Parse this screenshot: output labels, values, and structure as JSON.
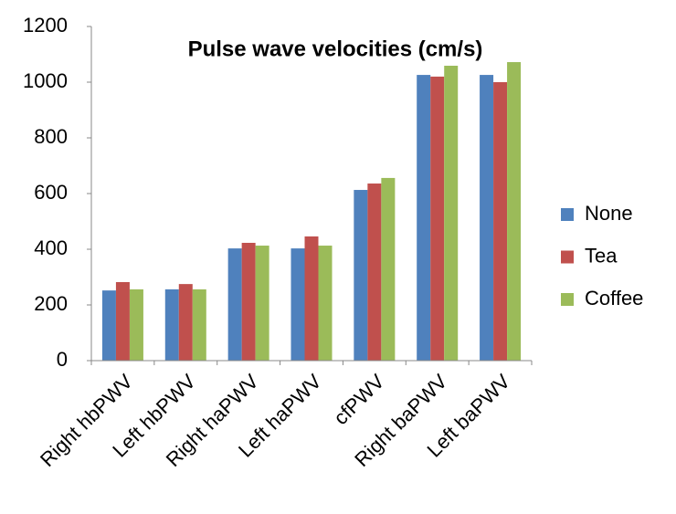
{
  "chart_data": {
    "type": "bar",
    "title": "Pulse wave velocities (cm/s)",
    "categories": [
      "Right hbPWV",
      "Left hbPWV",
      "Right haPWV",
      "Left haPWV",
      "cfPWV",
      "Right baPWV",
      "Left baPWV"
    ],
    "series": [
      {
        "name": "None",
        "color": "#4f81bd",
        "values": [
          252,
          256,
          403,
          403,
          613,
          1026,
          1026
        ]
      },
      {
        "name": "Tea",
        "color": "#c0504d",
        "values": [
          282,
          275,
          423,
          446,
          636,
          1020,
          1000
        ]
      },
      {
        "name": "Coffee",
        "color": "#9bbb59",
        "values": [
          256,
          256,
          413,
          413,
          656,
          1059,
          1072
        ]
      }
    ],
    "ylim": [
      0,
      1200
    ],
    "yticks": [
      0,
      200,
      400,
      600,
      800,
      1000,
      1200
    ],
    "grid": false,
    "legend": "right"
  }
}
